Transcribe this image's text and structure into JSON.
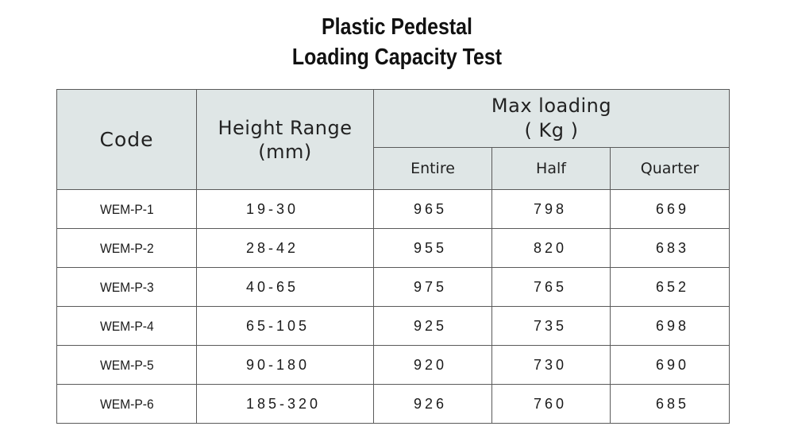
{
  "title": {
    "line1": "Plastic Pedestal",
    "line2": "Loading Capacity Test"
  },
  "table": {
    "headers": {
      "code": "Code",
      "height_range_line1": "Height Range",
      "height_range_line2": "(mm)",
      "max_loading_line1": "Max loading",
      "max_loading_line2": "( Kg )",
      "entire": "Entire",
      "half": "Half",
      "quarter": "Quarter"
    },
    "rows": [
      {
        "code": "WEM-P-1",
        "range": "19-30",
        "entire": "965",
        "half": "798",
        "quarter": "669"
      },
      {
        "code": "WEM-P-2",
        "range": "28-42",
        "entire": "955",
        "half": "820",
        "quarter": "683"
      },
      {
        "code": "WEM-P-3",
        "range": "40-65",
        "entire": "975",
        "half": "765",
        "quarter": "652"
      },
      {
        "code": "WEM-P-4",
        "range": "65-105",
        "entire": "925",
        "half": "735",
        "quarter": "698"
      },
      {
        "code": "WEM-P-5",
        "range": "90-180",
        "entire": "920",
        "half": "730",
        "quarter": "690"
      },
      {
        "code": "WEM-P-6",
        "range": "185-320",
        "entire": "926",
        "half": "760",
        "quarter": "685"
      }
    ]
  },
  "colors": {
    "header_background": "#dfe6e6",
    "border": "#5a5a5a"
  }
}
